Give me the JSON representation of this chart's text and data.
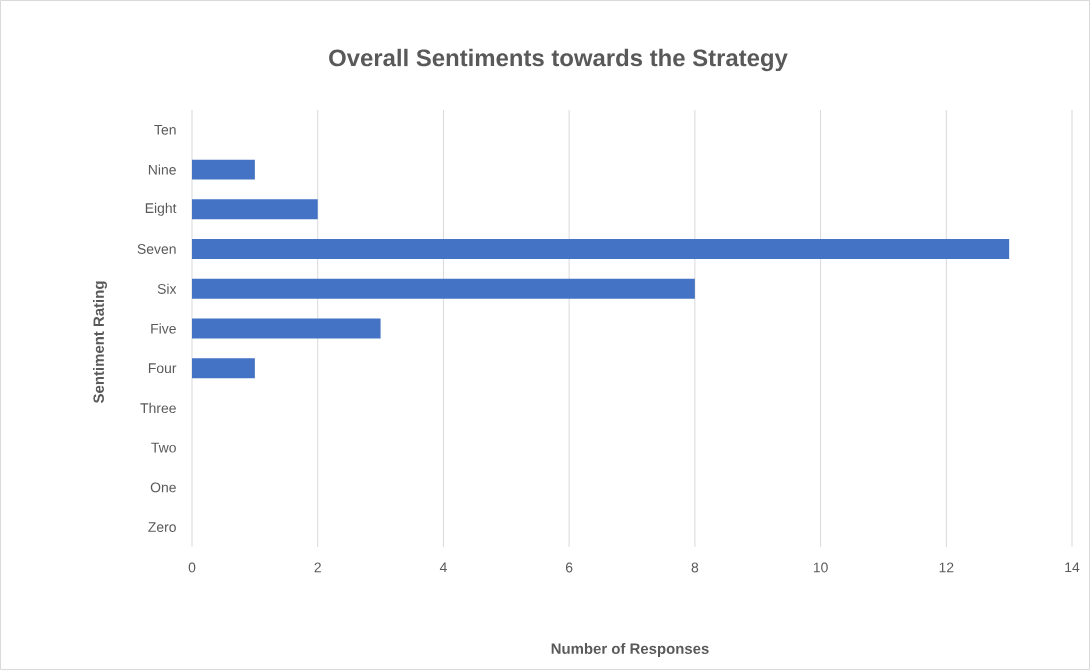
{
  "chart_data": {
    "type": "bar",
    "orientation": "horizontal",
    "title": "Overall Sentiments towards the Strategy",
    "xlabel": "Number of Responses",
    "ylabel": "Sentiment Rating",
    "categories": [
      "Ten",
      "Nine",
      "Eight",
      "Seven",
      "Six",
      "Five",
      "Four",
      "Three",
      "Two",
      "One",
      "Zero"
    ],
    "values": [
      0,
      1,
      2,
      13,
      8,
      3,
      1,
      0,
      0,
      0,
      0
    ],
    "color": "#4472c4",
    "xlim": [
      0,
      14
    ],
    "xticks": [
      0,
      2,
      4,
      6,
      8,
      10,
      12,
      14
    ],
    "grid": "x"
  }
}
